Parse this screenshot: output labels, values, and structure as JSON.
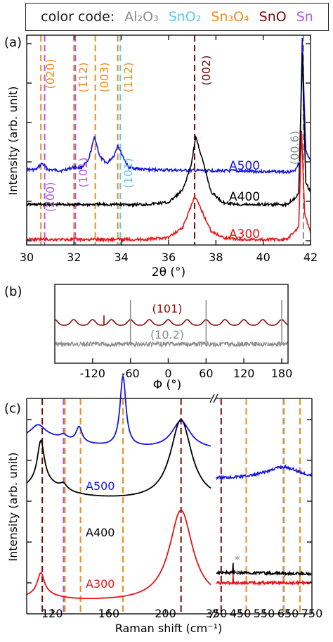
{
  "color_code": {
    "label": "color code:",
    "entries": [
      {
        "name": "Al₂O₃",
        "color": "#8c8c8c"
      },
      {
        "name": "SnO₂",
        "color": "#5ec8ee"
      },
      {
        "name": "Sn₃O₄",
        "color": "#f08a1c"
      },
      {
        "name": "SnO",
        "color": "#7a0a0a"
      },
      {
        "name": "Sn",
        "color": "#b05ae0"
      }
    ]
  },
  "chart_data": [
    {
      "panel": "(a)",
      "type": "line",
      "xlabel": "2θ  (°)",
      "ylabel": "Intensity  (arb. unit)",
      "xlim": [
        30,
        42
      ],
      "x_ticks": [
        "30",
        "32",
        "34",
        "36",
        "38",
        "40",
        "42"
      ],
      "series": [
        {
          "name": "A500",
          "color": "#1414e0",
          "points": [
            [
              30,
              0.36
            ],
            [
              30.4,
              0.36
            ],
            [
              30.65,
              0.39
            ],
            [
              30.9,
              0.36
            ],
            [
              31.5,
              0.355
            ],
            [
              31.95,
              0.37
            ],
            [
              32.3,
              0.37
            ],
            [
              32.6,
              0.4
            ],
            [
              32.87,
              0.52
            ],
            [
              33.1,
              0.42
            ],
            [
              33.4,
              0.39
            ],
            [
              33.7,
              0.43
            ],
            [
              33.85,
              0.48
            ],
            [
              34.0,
              0.44
            ],
            [
              34.3,
              0.37
            ],
            [
              35,
              0.36
            ],
            [
              37,
              0.355
            ],
            [
              38,
              0.355
            ],
            [
              40,
              0.35
            ],
            [
              41.3,
              0.35
            ],
            [
              41.55,
              0.4
            ],
            [
              41.65,
              1.0
            ],
            [
              41.8,
              0.45
            ],
            [
              42,
              0.4
            ]
          ]
        },
        {
          "name": "A400",
          "color": "#000000",
          "points": [
            [
              30,
              0.19
            ],
            [
              31,
              0.19
            ],
            [
              32,
              0.19
            ],
            [
              33,
              0.19
            ],
            [
              34,
              0.19
            ],
            [
              35,
              0.19
            ],
            [
              36,
              0.2
            ],
            [
              36.6,
              0.26
            ],
            [
              36.95,
              0.38
            ],
            [
              37.15,
              0.52
            ],
            [
              37.4,
              0.42
            ],
            [
              37.8,
              0.25
            ],
            [
              38.3,
              0.2
            ],
            [
              39,
              0.19
            ],
            [
              40,
              0.19
            ],
            [
              41,
              0.19
            ],
            [
              41.5,
              0.24
            ],
            [
              41.65,
              0.92
            ],
            [
              41.8,
              0.3
            ],
            [
              42,
              0.25
            ]
          ]
        },
        {
          "name": "A300",
          "color": "#e81414",
          "points": [
            [
              30,
              0.02
            ],
            [
              31,
              0.02
            ],
            [
              32,
              0.02
            ],
            [
              33,
              0.02
            ],
            [
              34,
              0.02
            ],
            [
              35,
              0.02
            ],
            [
              36,
              0.03
            ],
            [
              36.6,
              0.08
            ],
            [
              36.95,
              0.18
            ],
            [
              37.1,
              0.23
            ],
            [
              37.4,
              0.16
            ],
            [
              37.8,
              0.06
            ],
            [
              38.3,
              0.03
            ],
            [
              39,
              0.02
            ],
            [
              40,
              0.02
            ],
            [
              41,
              0.02
            ],
            [
              41.5,
              0.08
            ],
            [
              41.62,
              0.55
            ],
            [
              41.75,
              0.15
            ],
            [
              42,
              0.05
            ]
          ]
        }
      ],
      "reference_lines": [
        {
          "x": 30.6,
          "label": "(020)",
          "phase": "Sn3O4",
          "color": "#f08a1c"
        },
        {
          "x": 30.7,
          "label": "(200)",
          "phase": "Sn",
          "color": "#b05ae0"
        },
        {
          "x": 32.0,
          "label": "(1̄12)",
          "phase": "Sn3O4",
          "color": "#f08a1c"
        },
        {
          "x": 32.0,
          "label": "(101)",
          "phase": "Sn",
          "color": "#b05ae0"
        },
        {
          "x": 32.9,
          "label": "(003)",
          "phase": "Sn3O4",
          "color": "#f08a1c"
        },
        {
          "x": 33.85,
          "label": "(112)",
          "phase": "Sn3O4",
          "color": "#f08a1c"
        },
        {
          "x": 33.9,
          "label": "(101)",
          "phase": "SnO2",
          "color": "#5ec8ee"
        },
        {
          "x": 37.1,
          "label": "(002)",
          "phase": "SnO",
          "color": "#7a0a0a"
        },
        {
          "x": 41.7,
          "label": "(00.6)",
          "phase": "Al2O3",
          "color": "#8c8c8c"
        }
      ]
    },
    {
      "panel": "(b)",
      "type": "line",
      "xlabel": "Φ  (°)",
      "xlim": [
        -180,
        190
      ],
      "x_ticks": [
        "-120",
        "-60",
        "0",
        "60",
        "120",
        "180"
      ],
      "series": [
        {
          "name": "(101)",
          "color": "#8b0a0a",
          "period_deg": 30,
          "phase_offset_deg": 0
        },
        {
          "name": "(10.2)",
          "color": "#8c8c8c",
          "peaks_deg": [
            -60,
            60,
            180
          ]
        }
      ]
    },
    {
      "panel": "(c)",
      "type": "line",
      "xlabel": "Raman shift (cm⁻¹)",
      "ylabel": "Intensity  (arb. unit)",
      "x_ticks_left": [
        "120",
        "160",
        "200"
      ],
      "x_ticks_right": [
        "350",
        "450",
        "550",
        "650",
        "750"
      ],
      "series": [
        {
          "name": "A500",
          "color": "#1414e0"
        },
        {
          "name": "A400",
          "color": "#000000"
        },
        {
          "name": "A300",
          "color": "#e81414"
        }
      ],
      "reference_lines": [
        {
          "x": 113,
          "phase": "SnO",
          "color": "#7a0a0a"
        },
        {
          "x": 128,
          "phase": "Sn",
          "color": "#b05ae0"
        },
        {
          "x": 129,
          "phase": "Sn3O4",
          "color": "#f08a1c"
        },
        {
          "x": 140,
          "phase": "Sn3O4",
          "color": "#f08a1c"
        },
        {
          "x": 170,
          "phase": "Sn3O4",
          "color": "#f08a1c"
        },
        {
          "x": 211,
          "phase": "SnO",
          "color": "#7a0a0a"
        },
        {
          "x": 370,
          "phase": "SnO",
          "color": "#7a0a0a"
        },
        {
          "x": 475,
          "phase": "SnO",
          "color": "#7a0a0a"
        },
        {
          "x": 475,
          "phase": "Sn3O4",
          "color": "#f08a1c"
        },
        {
          "x": 630,
          "phase": "SnO2",
          "color": "#5ec8ee"
        },
        {
          "x": 633,
          "phase": "Sn3O4",
          "color": "#f08a1c"
        },
        {
          "x": 700,
          "phase": "Sn3O4",
          "color": "#f08a1c"
        }
      ],
      "annotations": [
        "*",
        "*"
      ]
    }
  ],
  "labels": {
    "panel_a": "(a)",
    "panel_b": "(b)",
    "panel_c": "(c)",
    "a500": "A500",
    "a400": "A400",
    "a300": "A300",
    "b_101": "(101)",
    "b_102": "(10.2)",
    "star": "*",
    "a_020": "(020)",
    "a_200": "(200)",
    "a_m112": "(1̄12)",
    "a_101sn": "(101)",
    "a_003": "(003)",
    "a_112": "(112)",
    "a_101sno2": "(101)",
    "a_002": "(002)",
    "a_006": "(00.6)"
  }
}
